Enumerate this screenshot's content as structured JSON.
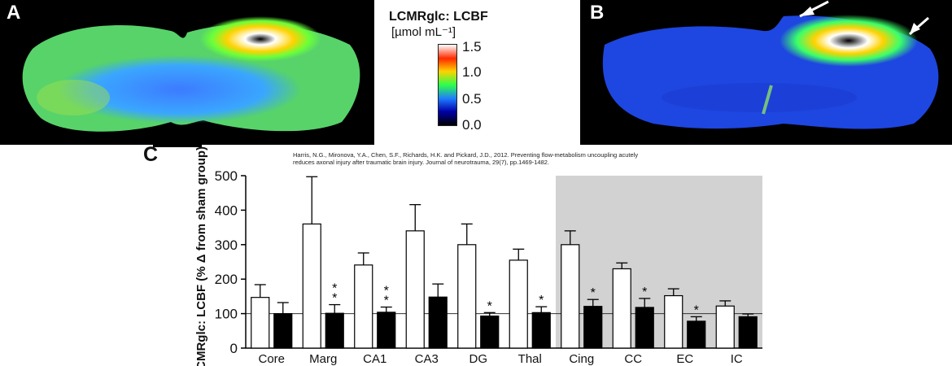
{
  "panels": {
    "a_label": "A",
    "b_label": "B",
    "c_label": "C"
  },
  "colorbar": {
    "title": "LCMRglc: LCBF",
    "unit": "[µmol mL⁻¹]",
    "ticks": [
      "1.5",
      "1.0",
      "0.5",
      "0.0"
    ],
    "colors": [
      "#ffffff",
      "#ff2a00",
      "#ffd200",
      "#2cff4a",
      "#1f7bff",
      "#0000a8",
      "#000000"
    ]
  },
  "citation": "Harris, N.G., Mironova, Y.A., Chen, S.F., Richards, H.K. and Pickard, J.D., 2012. Preventing flow-metabolism uncoupling acutely reduces axonal injury after traumatic brain injury. Journal of neurotrauma, 29(7), pp.1469-1482.",
  "chart_data": {
    "type": "bar",
    "ylabel": "LCMRglc: LCBF (% Δ from sham group)",
    "ylim": [
      0,
      500
    ],
    "yticks": [
      0,
      100,
      200,
      300,
      400,
      500
    ],
    "reference_line": 100,
    "categories": [
      "Core",
      "Marg",
      "CA1",
      "CA3",
      "DG",
      "Thal",
      "Cing",
      "CC",
      "EC",
      "IC"
    ],
    "shaded_categories": [
      "Cing",
      "CC",
      "EC",
      "IC"
    ],
    "series": [
      {
        "fill": "#ffffff",
        "values": [
          147,
          360,
          241,
          340,
          300,
          255,
          300,
          230,
          152,
          122
        ],
        "errors": [
          37,
          137,
          35,
          76,
          60,
          32,
          40,
          17,
          20,
          15
        ]
      },
      {
        "fill": "#000000",
        "values": [
          100,
          101,
          104,
          148,
          93,
          103,
          121,
          118,
          78,
          91
        ],
        "errors": [
          32,
          25,
          15,
          38,
          10,
          17,
          20,
          26,
          13,
          8
        ]
      }
    ],
    "significance": [
      "",
      "**",
      "**",
      "",
      "*",
      "*",
      "*",
      "*",
      "*",
      ""
    ]
  }
}
